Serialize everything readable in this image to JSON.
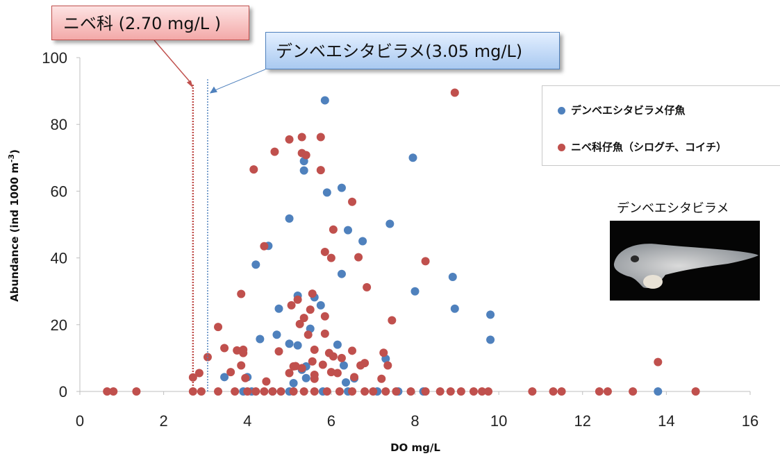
{
  "chart_data": {
    "type": "scatter",
    "xlabel": "DO mg/L",
    "ylabel": "Abundance (ind 1000 m-3)",
    "xlim": [
      0,
      16
    ],
    "ylim": [
      0,
      100
    ],
    "xticks": [
      0,
      2,
      4,
      6,
      8,
      10,
      12,
      14,
      16
    ],
    "yticks": [
      0,
      20,
      40,
      60,
      80,
      100
    ],
    "grid": false,
    "legend_position": "top-right",
    "series": [
      {
        "name": "デンベエシタビラメ仔魚",
        "color": "#4f81bd",
        "points": [
          [
            5.85,
            87.2
          ],
          [
            7.95,
            70.0
          ],
          [
            5.35,
            69.0
          ],
          [
            5.35,
            66.2
          ],
          [
            6.25,
            61.0
          ],
          [
            5.9,
            59.6
          ],
          [
            5.0,
            51.8
          ],
          [
            7.4,
            50.2
          ],
          [
            6.4,
            48.3
          ],
          [
            6.75,
            45.0
          ],
          [
            4.5,
            43.6
          ],
          [
            4.2,
            38.0
          ],
          [
            6.25,
            35.2
          ],
          [
            8.9,
            34.3
          ],
          [
            8.0,
            30.0
          ],
          [
            5.2,
            28.7
          ],
          [
            5.6,
            28.2
          ],
          [
            5.75,
            25.8
          ],
          [
            4.75,
            24.8
          ],
          [
            8.95,
            24.8
          ],
          [
            9.8,
            23.0
          ],
          [
            5.5,
            18.8
          ],
          [
            4.7,
            17.0
          ],
          [
            4.3,
            15.7
          ],
          [
            9.8,
            15.5
          ],
          [
            5.0,
            14.3
          ],
          [
            5.2,
            13.8
          ],
          [
            6.15,
            14.0
          ],
          [
            7.3,
            9.8
          ],
          [
            6.3,
            7.8
          ],
          [
            5.4,
            7.5
          ],
          [
            5.3,
            6.5
          ],
          [
            4.0,
            4.3
          ],
          [
            3.45,
            4.3
          ],
          [
            5.4,
            4.0
          ],
          [
            6.55,
            3.9
          ],
          [
            5.1,
            2.5
          ],
          [
            6.35,
            2.7
          ],
          [
            3.9,
            0
          ],
          [
            4.1,
            0
          ],
          [
            4.6,
            0
          ],
          [
            5.0,
            0
          ],
          [
            5.8,
            0
          ],
          [
            6.4,
            0
          ],
          [
            7.1,
            0
          ],
          [
            7.6,
            0
          ],
          [
            8.2,
            0
          ],
          [
            13.8,
            0
          ]
        ]
      },
      {
        "name": "ニベ科仔魚（シログチ、コイチ）",
        "color": "#c0504d",
        "points": [
          [
            8.95,
            89.5
          ],
          [
            5.3,
            76.2
          ],
          [
            5.75,
            76.2
          ],
          [
            5.0,
            75.5
          ],
          [
            4.65,
            71.8
          ],
          [
            5.3,
            71.4
          ],
          [
            5.4,
            70.8
          ],
          [
            4.15,
            66.5
          ],
          [
            5.75,
            66.3
          ],
          [
            6.5,
            56.8
          ],
          [
            6.05,
            48.5
          ],
          [
            4.4,
            43.5
          ],
          [
            5.85,
            41.8
          ],
          [
            6.0,
            40.0
          ],
          [
            6.65,
            40.2
          ],
          [
            8.25,
            39.0
          ],
          [
            6.85,
            31.2
          ],
          [
            3.85,
            29.2
          ],
          [
            5.55,
            29.3
          ],
          [
            5.2,
            27.5
          ],
          [
            5.05,
            25.8
          ],
          [
            5.5,
            24.5
          ],
          [
            5.85,
            22.5
          ],
          [
            5.35,
            22.0
          ],
          [
            7.45,
            21.3
          ],
          [
            5.25,
            20.2
          ],
          [
            3.3,
            19.3
          ],
          [
            5.85,
            17.3
          ],
          [
            5.45,
            17.0
          ],
          [
            4.75,
            12.0
          ],
          [
            5.6,
            12.5
          ],
          [
            6.5,
            12.2
          ],
          [
            3.45,
            13.0
          ],
          [
            3.9,
            11.5
          ],
          [
            3.9,
            12.5
          ],
          [
            3.75,
            12.3
          ],
          [
            3.05,
            10.3
          ],
          [
            6.05,
            10.5
          ],
          [
            6.25,
            10.0
          ],
          [
            5.95,
            11.5
          ],
          [
            7.25,
            11.6
          ],
          [
            5.55,
            9.0
          ],
          [
            5.8,
            8.0
          ],
          [
            3.85,
            7.8
          ],
          [
            6.8,
            8.5
          ],
          [
            6.7,
            7.8
          ],
          [
            5.1,
            7.5
          ],
          [
            5.3,
            7.0
          ],
          [
            5.15,
            7.6
          ],
          [
            7.35,
            7.8
          ],
          [
            6.0,
            5.8
          ],
          [
            6.15,
            5.5
          ],
          [
            5.6,
            5.0
          ],
          [
            5.0,
            5.5
          ],
          [
            2.85,
            5.5
          ],
          [
            3.6,
            5.8
          ],
          [
            2.7,
            4.2
          ],
          [
            3.95,
            4.0
          ],
          [
            4.45,
            3.0
          ],
          [
            5.6,
            3.8
          ],
          [
            6.55,
            4.3
          ],
          [
            7.2,
            3.8
          ],
          [
            13.8,
            8.8
          ],
          [
            0.65,
            0
          ],
          [
            0.8,
            0
          ],
          [
            1.35,
            0
          ],
          [
            2.7,
            0
          ],
          [
            2.9,
            0
          ],
          [
            3.3,
            0
          ],
          [
            3.7,
            0
          ],
          [
            4.0,
            0
          ],
          [
            4.2,
            0
          ],
          [
            4.4,
            0
          ],
          [
            4.6,
            0
          ],
          [
            4.8,
            0
          ],
          [
            5.1,
            0
          ],
          [
            5.35,
            0
          ],
          [
            5.6,
            0
          ],
          [
            5.9,
            0
          ],
          [
            6.2,
            0
          ],
          [
            6.5,
            0
          ],
          [
            6.8,
            0
          ],
          [
            7.0,
            0
          ],
          [
            7.3,
            0
          ],
          [
            7.55,
            0
          ],
          [
            7.9,
            0
          ],
          [
            8.25,
            0
          ],
          [
            8.6,
            0
          ],
          [
            8.85,
            0
          ],
          [
            9.1,
            0
          ],
          [
            9.4,
            0
          ],
          [
            9.6,
            0
          ],
          [
            9.75,
            0
          ],
          [
            10.8,
            0
          ],
          [
            11.3,
            0
          ],
          [
            11.5,
            0
          ],
          [
            12.4,
            0
          ],
          [
            12.6,
            0
          ],
          [
            13.2,
            0
          ],
          [
            14.7,
            0
          ]
        ]
      }
    ],
    "thresholds": [
      {
        "value": 2.7,
        "label": "ニベ科 (2.70 mg/L )",
        "color": "#c0504d"
      },
      {
        "value": 3.05,
        "label": "デンベエシタビラメ(3.05 mg/L)",
        "color": "#4f81bd"
      }
    ]
  },
  "photo": {
    "caption": "デンベエシタビラメ"
  }
}
